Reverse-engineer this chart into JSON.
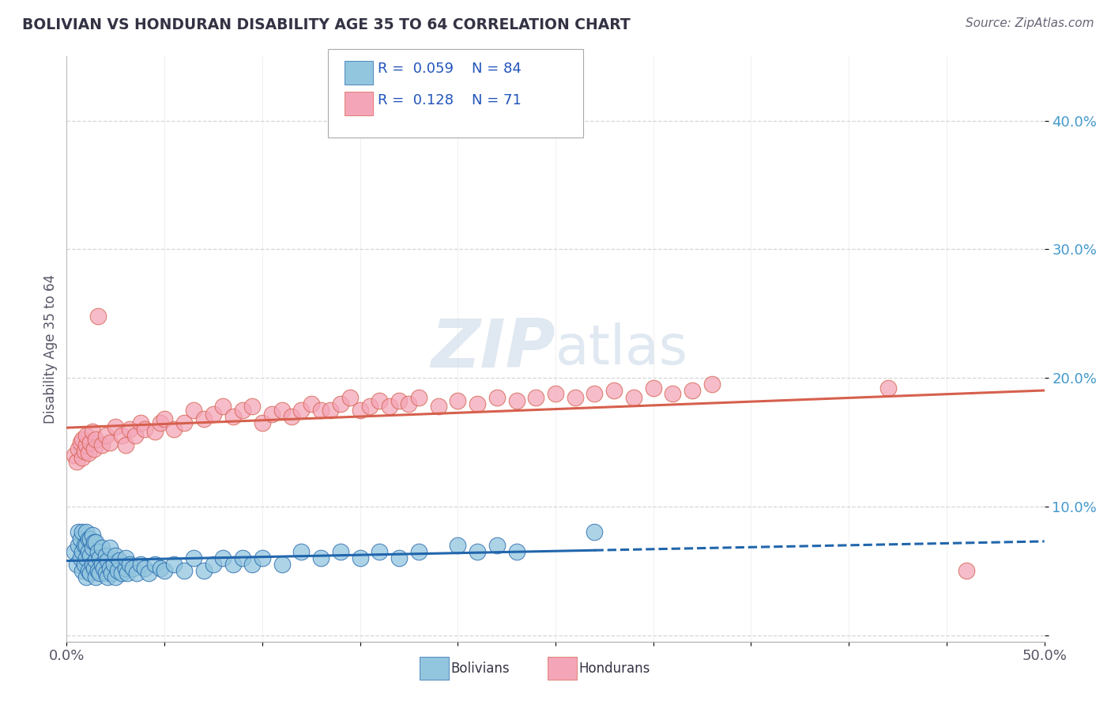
{
  "title": "BOLIVIAN VS HONDURAN DISABILITY AGE 35 TO 64 CORRELATION CHART",
  "source_text": "Source: ZipAtlas.com",
  "ylabel": "Disability Age 35 to 64",
  "xlim": [
    0.0,
    0.5
  ],
  "ylim": [
    -0.005,
    0.45
  ],
  "xticks": [
    0.0,
    0.05,
    0.1,
    0.15,
    0.2,
    0.25,
    0.3,
    0.35,
    0.4,
    0.45,
    0.5
  ],
  "xticklabels": [
    "0.0%",
    "",
    "",
    "",
    "",
    "",
    "",
    "",
    "",
    "",
    "50.0%"
  ],
  "ytick_positions": [
    0.0,
    0.1,
    0.2,
    0.3,
    0.4
  ],
  "yticklabels": [
    "",
    "10.0%",
    "20.0%",
    "30.0%",
    "40.0%"
  ],
  "legend_r_bolivian": "0.059",
  "legend_n_bolivian": "84",
  "legend_r_honduran": "0.128",
  "legend_n_honduran": "71",
  "bolivian_color": "#92c5de",
  "honduran_color": "#f4a6b8",
  "bolivian_line_color": "#2166ac",
  "honduran_line_color": "#d6604d",
  "watermark_color": "#ccd9e8",
  "background_color": "#ffffff",
  "bolivians_x": [
    0.004,
    0.005,
    0.006,
    0.006,
    0.007,
    0.007,
    0.008,
    0.008,
    0.008,
    0.009,
    0.009,
    0.01,
    0.01,
    0.01,
    0.01,
    0.011,
    0.011,
    0.011,
    0.012,
    0.012,
    0.012,
    0.013,
    0.013,
    0.013,
    0.014,
    0.014,
    0.015,
    0.015,
    0.015,
    0.016,
    0.016,
    0.017,
    0.017,
    0.018,
    0.018,
    0.019,
    0.02,
    0.02,
    0.021,
    0.021,
    0.022,
    0.022,
    0.023,
    0.024,
    0.025,
    0.025,
    0.026,
    0.027,
    0.028,
    0.03,
    0.03,
    0.031,
    0.032,
    0.034,
    0.036,
    0.038,
    0.04,
    0.042,
    0.045,
    0.048,
    0.05,
    0.055,
    0.06,
    0.065,
    0.07,
    0.075,
    0.08,
    0.085,
    0.09,
    0.095,
    0.1,
    0.11,
    0.12,
    0.13,
    0.14,
    0.15,
    0.16,
    0.17,
    0.18,
    0.2,
    0.21,
    0.22,
    0.23,
    0.27
  ],
  "bolivians_y": [
    0.065,
    0.055,
    0.07,
    0.08,
    0.06,
    0.075,
    0.05,
    0.065,
    0.08,
    0.055,
    0.07,
    0.045,
    0.06,
    0.07,
    0.08,
    0.05,
    0.065,
    0.075,
    0.048,
    0.062,
    0.075,
    0.055,
    0.068,
    0.078,
    0.052,
    0.072,
    0.045,
    0.058,
    0.072,
    0.05,
    0.065,
    0.048,
    0.06,
    0.055,
    0.068,
    0.052,
    0.048,
    0.062,
    0.045,
    0.058,
    0.052,
    0.068,
    0.048,
    0.055,
    0.045,
    0.062,
    0.05,
    0.058,
    0.048,
    0.052,
    0.06,
    0.048,
    0.055,
    0.052,
    0.048,
    0.055,
    0.052,
    0.048,
    0.055,
    0.052,
    0.05,
    0.055,
    0.05,
    0.06,
    0.05,
    0.055,
    0.06,
    0.055,
    0.06,
    0.055,
    0.06,
    0.055,
    0.065,
    0.06,
    0.065,
    0.06,
    0.065,
    0.06,
    0.065,
    0.07,
    0.065,
    0.07,
    0.065,
    0.08
  ],
  "hondurans_x": [
    0.004,
    0.005,
    0.006,
    0.007,
    0.008,
    0.008,
    0.009,
    0.01,
    0.01,
    0.011,
    0.012,
    0.013,
    0.014,
    0.015,
    0.016,
    0.018,
    0.02,
    0.022,
    0.025,
    0.028,
    0.03,
    0.032,
    0.035,
    0.038,
    0.04,
    0.045,
    0.048,
    0.05,
    0.055,
    0.06,
    0.065,
    0.07,
    0.075,
    0.08,
    0.085,
    0.09,
    0.095,
    0.1,
    0.105,
    0.11,
    0.115,
    0.12,
    0.125,
    0.13,
    0.135,
    0.14,
    0.145,
    0.15,
    0.155,
    0.16,
    0.165,
    0.17,
    0.175,
    0.18,
    0.19,
    0.2,
    0.21,
    0.22,
    0.23,
    0.24,
    0.25,
    0.26,
    0.27,
    0.28,
    0.29,
    0.3,
    0.31,
    0.32,
    0.33,
    0.42,
    0.46
  ],
  "hondurans_y": [
    0.14,
    0.135,
    0.145,
    0.15,
    0.138,
    0.152,
    0.143,
    0.148,
    0.155,
    0.142,
    0.15,
    0.158,
    0.145,
    0.152,
    0.248,
    0.148,
    0.155,
    0.15,
    0.162,
    0.155,
    0.148,
    0.16,
    0.155,
    0.165,
    0.16,
    0.158,
    0.165,
    0.168,
    0.16,
    0.165,
    0.175,
    0.168,
    0.172,
    0.178,
    0.17,
    0.175,
    0.178,
    0.165,
    0.172,
    0.175,
    0.17,
    0.175,
    0.18,
    0.175,
    0.175,
    0.18,
    0.185,
    0.175,
    0.178,
    0.182,
    0.178,
    0.182,
    0.18,
    0.185,
    0.178,
    0.182,
    0.18,
    0.185,
    0.182,
    0.185,
    0.188,
    0.185,
    0.188,
    0.19,
    0.185,
    0.192,
    0.188,
    0.19,
    0.195,
    0.192,
    0.05
  ]
}
